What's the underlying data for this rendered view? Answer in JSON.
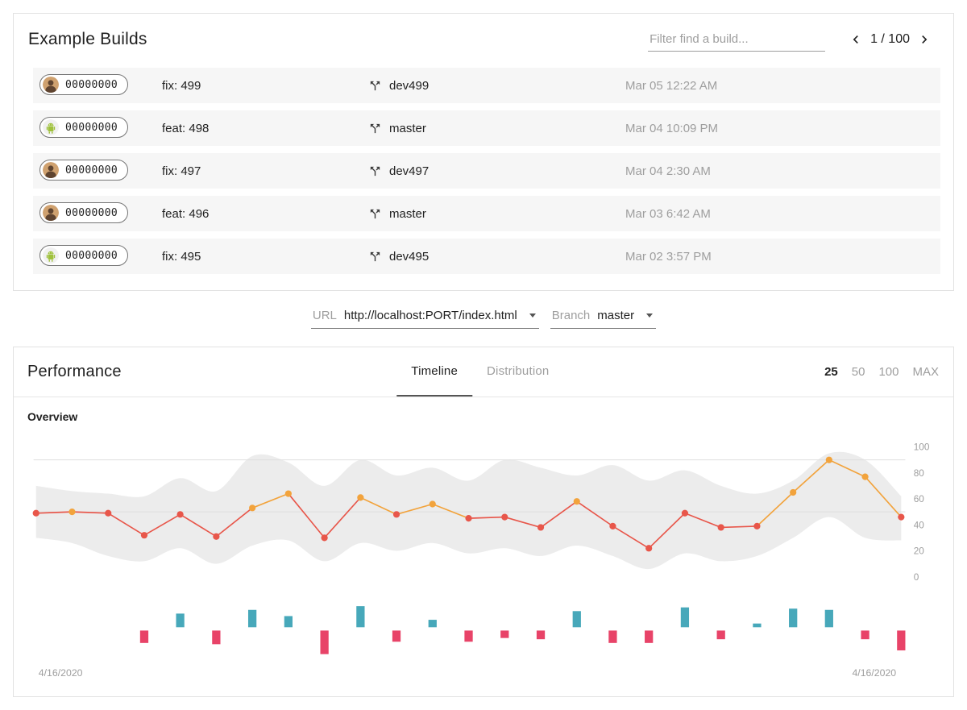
{
  "builds_card": {
    "title": "Example Builds",
    "filter_placeholder": "Filter find a build...",
    "pagination": "1 / 100",
    "rows": [
      {
        "hash": "00000000",
        "avatar": "person",
        "name": "fix: 499",
        "branch": "dev499",
        "date": "Mar 05 12:22 AM"
      },
      {
        "hash": "00000000",
        "avatar": "android",
        "name": "feat: 498",
        "branch": "master",
        "date": "Mar 04 10:09 PM"
      },
      {
        "hash": "00000000",
        "avatar": "person",
        "name": "fix: 497",
        "branch": "dev497",
        "date": "Mar 04 2:30 AM"
      },
      {
        "hash": "00000000",
        "avatar": "person",
        "name": "feat: 496",
        "branch": "master",
        "date": "Mar 03 6:42 AM"
      },
      {
        "hash": "00000000",
        "avatar": "android",
        "name": "fix: 495",
        "branch": "dev495",
        "date": "Mar 02 3:57 PM"
      }
    ]
  },
  "controls": {
    "url_label": "URL",
    "url_value": "http://localhost:PORT/index.html",
    "branch_label": "Branch",
    "branch_value": "master"
  },
  "performance": {
    "title": "Performance",
    "tabs": [
      {
        "label": "Timeline",
        "active": true
      },
      {
        "label": "Distribution",
        "active": false
      }
    ],
    "ranges": [
      {
        "label": "25",
        "active": true
      },
      {
        "label": "50",
        "active": false
      },
      {
        "label": "100",
        "active": false
      },
      {
        "label": "MAX",
        "active": false
      }
    ],
    "section_label": "Overview"
  },
  "colors": {
    "score_orange": "#f2a33c",
    "score_red": "#e8564a",
    "band": "#ececec",
    "bar_positive": "#47a8ba",
    "bar_negative": "#e84368",
    "grid": "#dfdfdf",
    "axis_text": "#9e9e9e"
  },
  "chart_data": {
    "type": "line",
    "title": "Overview",
    "x_start_label": "4/16/2020",
    "x_end_label": "4/16/2020",
    "ylim": [
      0,
      100
    ],
    "y_ticks": [
      0,
      20,
      40,
      60,
      80,
      100
    ],
    "threshold_gridlines": [
      50,
      90
    ],
    "legend": "off",
    "series": [
      {
        "name": "score",
        "values": [
          49,
          50,
          49,
          32,
          48,
          31,
          53,
          64,
          30,
          61,
          48,
          56,
          45,
          46,
          38,
          58,
          39,
          22,
          49,
          38,
          39,
          65,
          90,
          77,
          46
        ]
      },
      {
        "name": "band_upper",
        "values": [
          70,
          66,
          64,
          62,
          76,
          66,
          93,
          88,
          70,
          90,
          78,
          84,
          74,
          90,
          84,
          78,
          86,
          74,
          82,
          70,
          64,
          74,
          95,
          90,
          62
        ]
      },
      {
        "name": "band_lower",
        "values": [
          30,
          26,
          16,
          12,
          22,
          10,
          24,
          28,
          12,
          26,
          20,
          26,
          18,
          22,
          16,
          24,
          16,
          6,
          18,
          12,
          16,
          30,
          46,
          30,
          28
        ]
      },
      {
        "name": "delta_bars",
        "values": [
          0,
          0,
          0,
          -10,
          11,
          -11,
          14,
          9,
          -19,
          17,
          -9,
          6,
          -9,
          -6,
          -7,
          13,
          -10,
          -10,
          16,
          -7,
          3,
          15,
          14,
          -7,
          -16
        ]
      }
    ]
  }
}
